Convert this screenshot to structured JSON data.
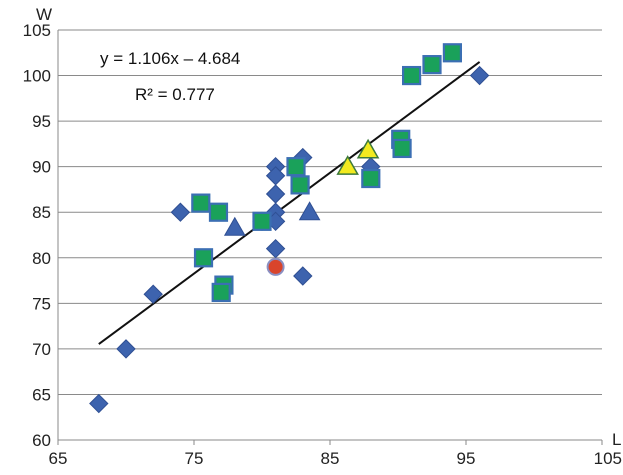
{
  "chart_data": {
    "type": "scatter",
    "xlabel": "L",
    "ylabel": "W",
    "xlim": [
      65,
      105
    ],
    "ylim": [
      60,
      105
    ],
    "xticks": [
      "65",
      "75",
      "85",
      "95",
      "105"
    ],
    "yticks": [
      "60",
      "65",
      "70",
      "75",
      "80",
      "85",
      "90",
      "95",
      "100",
      "105"
    ],
    "grid": "horizontal",
    "series": [
      {
        "marker": "diamond",
        "color": "#3d63ae",
        "points": [
          [
            68,
            64
          ],
          [
            70,
            70
          ],
          [
            72,
            76
          ],
          [
            74,
            85
          ],
          [
            80,
            84
          ],
          [
            81,
            90
          ],
          [
            81,
            89
          ],
          [
            81,
            87
          ],
          [
            81,
            85
          ],
          [
            81,
            84
          ],
          [
            81,
            81
          ],
          [
            83,
            91
          ],
          [
            83,
            78
          ],
          [
            88,
            90
          ],
          [
            96,
            100
          ]
        ]
      },
      {
        "marker": "square",
        "color": "#1aa15a",
        "points": [
          [
            75.5,
            86
          ],
          [
            76.8,
            85
          ],
          [
            75.7,
            80
          ],
          [
            77.2,
            77
          ],
          [
            77,
            76.2
          ],
          [
            80,
            84
          ],
          [
            82.5,
            90
          ],
          [
            82.8,
            88
          ],
          [
            88,
            88.7
          ],
          [
            90.2,
            93
          ],
          [
            90.3,
            92
          ],
          [
            91,
            100
          ],
          [
            92.5,
            101.2
          ],
          [
            94,
            102.5
          ]
        ]
      },
      {
        "marker": "triangle",
        "color": "#3d63ae",
        "points": [
          [
            78,
            83.3
          ],
          [
            83.5,
            85
          ]
        ]
      },
      {
        "marker": "triangle",
        "color": "#f2ea1f",
        "points": [
          [
            86.3,
            90
          ],
          [
            87.8,
            91.8
          ]
        ]
      },
      {
        "marker": "circle",
        "color": "#d9442b",
        "points": [
          [
            81,
            79
          ]
        ]
      }
    ],
    "trendline": {
      "slope": 1.106,
      "intercept": -4.684,
      "x_range": [
        68,
        96
      ],
      "equation_label": "y = 1.106x – 4.684",
      "r2_label": "R² = 0.777"
    }
  }
}
